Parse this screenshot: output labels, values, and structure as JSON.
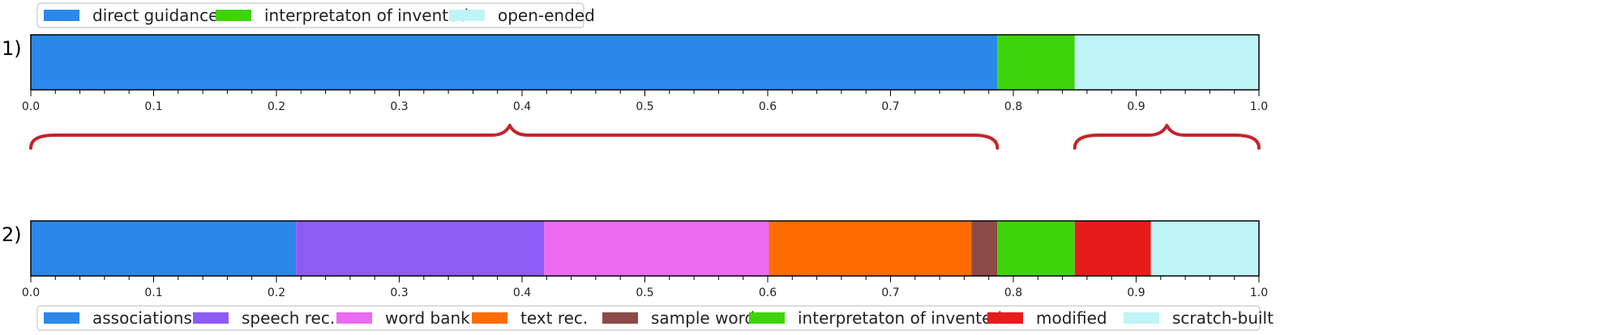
{
  "chart_data": [
    {
      "type": "bar",
      "orientation": "horizontal",
      "stacked": true,
      "panel_label": "1)",
      "xlim": [
        0,
        1
      ],
      "xticks": [
        "0.0",
        "0.1",
        "0.2",
        "0.3",
        "0.4",
        "0.5",
        "0.6",
        "0.7",
        "0.8",
        "0.9",
        "1.0"
      ],
      "legend_position": "top-left",
      "segments": [
        {
          "name": "direct guidance",
          "start": 0.0,
          "end": 0.787,
          "color": "#2b88e8"
        },
        {
          "name": "interpretaton of invented",
          "start": 0.787,
          "end": 0.85,
          "color": "#3dd40a"
        },
        {
          "name": "open-ended",
          "start": 0.85,
          "end": 1.0,
          "color": "#bff5f7"
        }
      ]
    },
    {
      "type": "bar",
      "orientation": "horizontal",
      "stacked": true,
      "panel_label": "2)",
      "xlim": [
        0,
        1
      ],
      "xticks": [
        "0.0",
        "0.1",
        "0.2",
        "0.3",
        "0.4",
        "0.5",
        "0.6",
        "0.7",
        "0.8",
        "0.9",
        "1.0"
      ],
      "legend_position": "bottom",
      "segments": [
        {
          "name": "associations",
          "start": 0.0,
          "end": 0.216,
          "color": "#2b88e8"
        },
        {
          "name": "speech rec.",
          "start": 0.216,
          "end": 0.418,
          "color": "#8e5bf7"
        },
        {
          "name": "word bank",
          "start": 0.418,
          "end": 0.601,
          "color": "#ea6af0"
        },
        {
          "name": "text rec.",
          "start": 0.601,
          "end": 0.766,
          "color": "#ff6d00"
        },
        {
          "name": "sample word",
          "start": 0.766,
          "end": 0.787,
          "color": "#8c4b48"
        },
        {
          "name": "interpretaton of invented",
          "start": 0.787,
          "end": 0.85,
          "color": "#3dd40a"
        },
        {
          "name": "modified",
          "start": 0.85,
          "end": 0.912,
          "color": "#e81b1b"
        },
        {
          "name": "scratch-built",
          "start": 0.912,
          "end": 1.0,
          "color": "#bff5f7"
        }
      ]
    }
  ],
  "braces": [
    {
      "from": 0.0,
      "to": 0.787,
      "peak": 0.39,
      "color": "#c0262c"
    },
    {
      "from": 0.85,
      "to": 1.0,
      "peak": 0.925,
      "color": "#c0262c"
    }
  ]
}
